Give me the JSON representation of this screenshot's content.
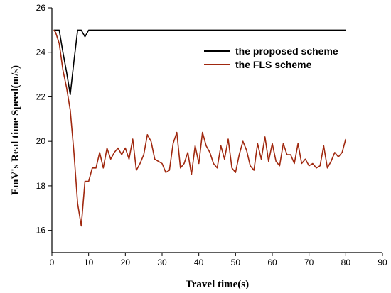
{
  "chart_data": {
    "type": "line",
    "xlabel": "Travel time(s)",
    "ylabel": "EmV's Real time Speed(m/s)",
    "xlim": [
      0,
      90
    ],
    "ylim": [
      15,
      26
    ],
    "x_ticks": [
      0,
      10,
      20,
      30,
      40,
      50,
      60,
      70,
      80,
      90
    ],
    "y_ticks": [
      16,
      18,
      20,
      22,
      24,
      26
    ],
    "grid": false,
    "legend_position": "top-right",
    "series": [
      {
        "name": "the proposed scheme",
        "color": "#000000",
        "x": [
          0.5,
          2,
          3,
          4,
          5,
          6,
          7,
          8,
          9,
          10,
          11,
          80
        ],
        "y": [
          25,
          25,
          24,
          23.1,
          22.1,
          23.6,
          25,
          25,
          24.7,
          25,
          25,
          25
        ]
      },
      {
        "name": "the FLS scheme",
        "color": "#a0280f",
        "x": [
          0.5,
          1,
          2,
          3,
          4,
          5,
          6,
          7,
          8,
          9,
          10,
          11,
          12,
          13,
          14,
          15,
          16,
          17,
          18,
          19,
          20,
          21,
          22,
          23,
          24,
          25,
          26,
          27,
          28,
          29,
          30,
          31,
          32,
          33,
          34,
          35,
          36,
          37,
          38,
          39,
          40,
          41,
          42,
          43,
          44,
          45,
          46,
          47,
          48,
          49,
          50,
          51,
          52,
          53,
          54,
          55,
          56,
          57,
          58,
          59,
          60,
          61,
          62,
          63,
          64,
          65,
          66,
          67,
          68,
          69,
          70,
          71,
          72,
          73,
          74,
          75,
          76,
          77,
          78,
          79,
          80
        ],
        "y": [
          25,
          24.9,
          24.4,
          23.2,
          22.4,
          21.4,
          19.5,
          17.2,
          16.2,
          18.2,
          18.2,
          18.8,
          18.8,
          19.5,
          18.8,
          19.7,
          19.2,
          19.5,
          19.7,
          19.4,
          19.7,
          19.2,
          20.1,
          18.7,
          19,
          19.4,
          20.3,
          20,
          19.2,
          19.1,
          19,
          18.6,
          18.7,
          19.9,
          20.4,
          18.8,
          19,
          19.5,
          18.5,
          19.8,
          19,
          20.4,
          19.8,
          19.5,
          19,
          18.8,
          19.8,
          19.2,
          20.1,
          18.8,
          18.6,
          19.4,
          20,
          19.6,
          18.9,
          18.7,
          19.9,
          19.2,
          20.2,
          19.1,
          19.9,
          19.1,
          18.9,
          19.9,
          19.4,
          19.4,
          19,
          19.9,
          19,
          19.2,
          18.9,
          19,
          18.8,
          18.9,
          19.8,
          18.8,
          19.1,
          19.5,
          19.3,
          19.5,
          20.1
        ]
      }
    ]
  }
}
